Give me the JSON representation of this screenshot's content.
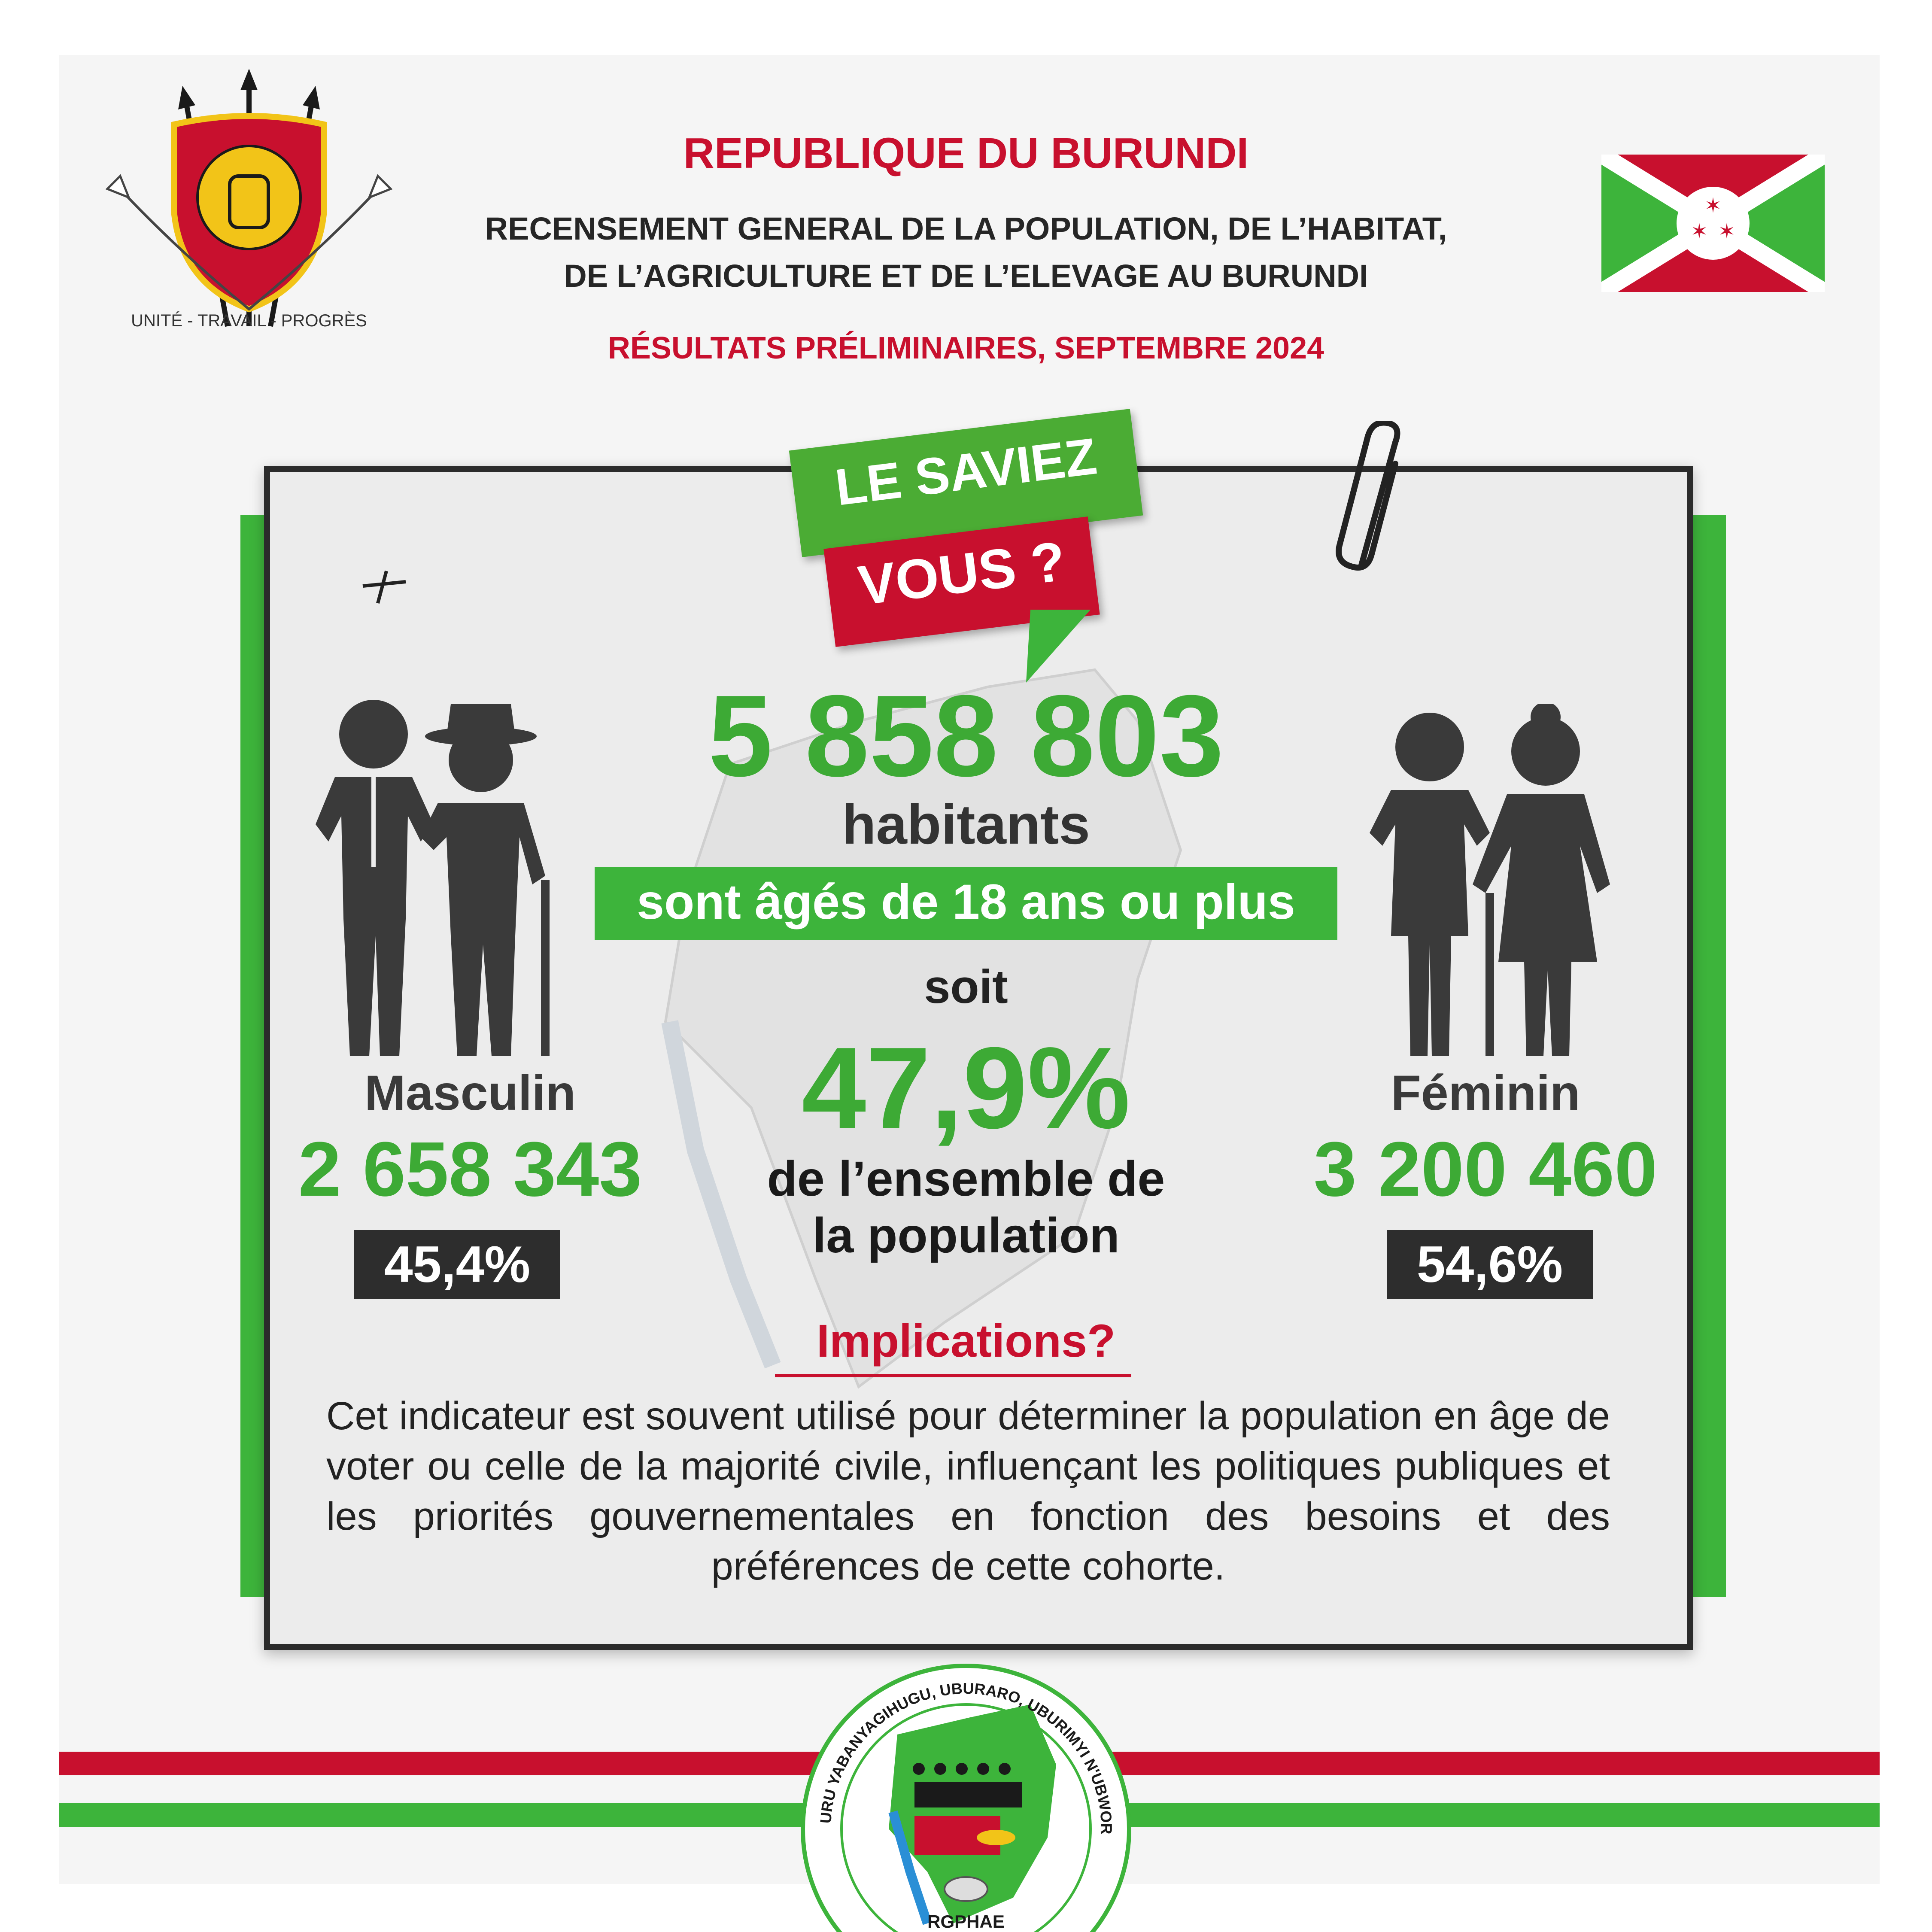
{
  "header": {
    "republic": "REPUBLIQUE DU BURUNDI",
    "census_line1": "RECENSEMENT GENERAL DE LA POPULATION, DE L’HABITAT,",
    "census_line2": "DE L’AGRICULTURE ET DE L’ELEVAGE AU BURUNDI",
    "results": "RÉSULTATS PRÉLIMINAIRES, SEPTEMBRE 2024"
  },
  "coat_of_arms": {
    "motto": "UNITÉ - TRAVAIL - PROGRÈS"
  },
  "badge": {
    "line1": "LE SAVIEZ",
    "line2": "VOUS ?"
  },
  "main": {
    "total": "5 858 803",
    "habitants": "habitants",
    "age_condition": "sont âgés de 18 ans ou plus",
    "soit": "soit",
    "percent": "47,9%",
    "ensemble_line1": "de l’ensemble de",
    "ensemble_line2": "la population"
  },
  "male": {
    "label": "Masculin",
    "count": "2 658 343",
    "percent": "45,4%"
  },
  "female": {
    "label": "Féminin",
    "count": "3 200 460",
    "percent": "54,6%"
  },
  "implications": {
    "title": "Implications?",
    "text": "Cet indicateur est souvent utilisé pour déterminer la population en âge de voter ou celle de la majorité civile, influençant les politiques publiques et les priorités gouvernementales en fonction des besoins et des préférences de cette cohorte."
  },
  "logo": {
    "ring_text": "RUSANSUMWA NKURU YABANYAGIHUGU, UBURARO, UBURIMYI N'UBWOROZI MU BURUNDI",
    "acronym": "RGPHAE"
  },
  "colors": {
    "red": "#c8102e",
    "green": "#3db43b",
    "dark": "#2d2d2d",
    "text_green": "#3daa35"
  }
}
